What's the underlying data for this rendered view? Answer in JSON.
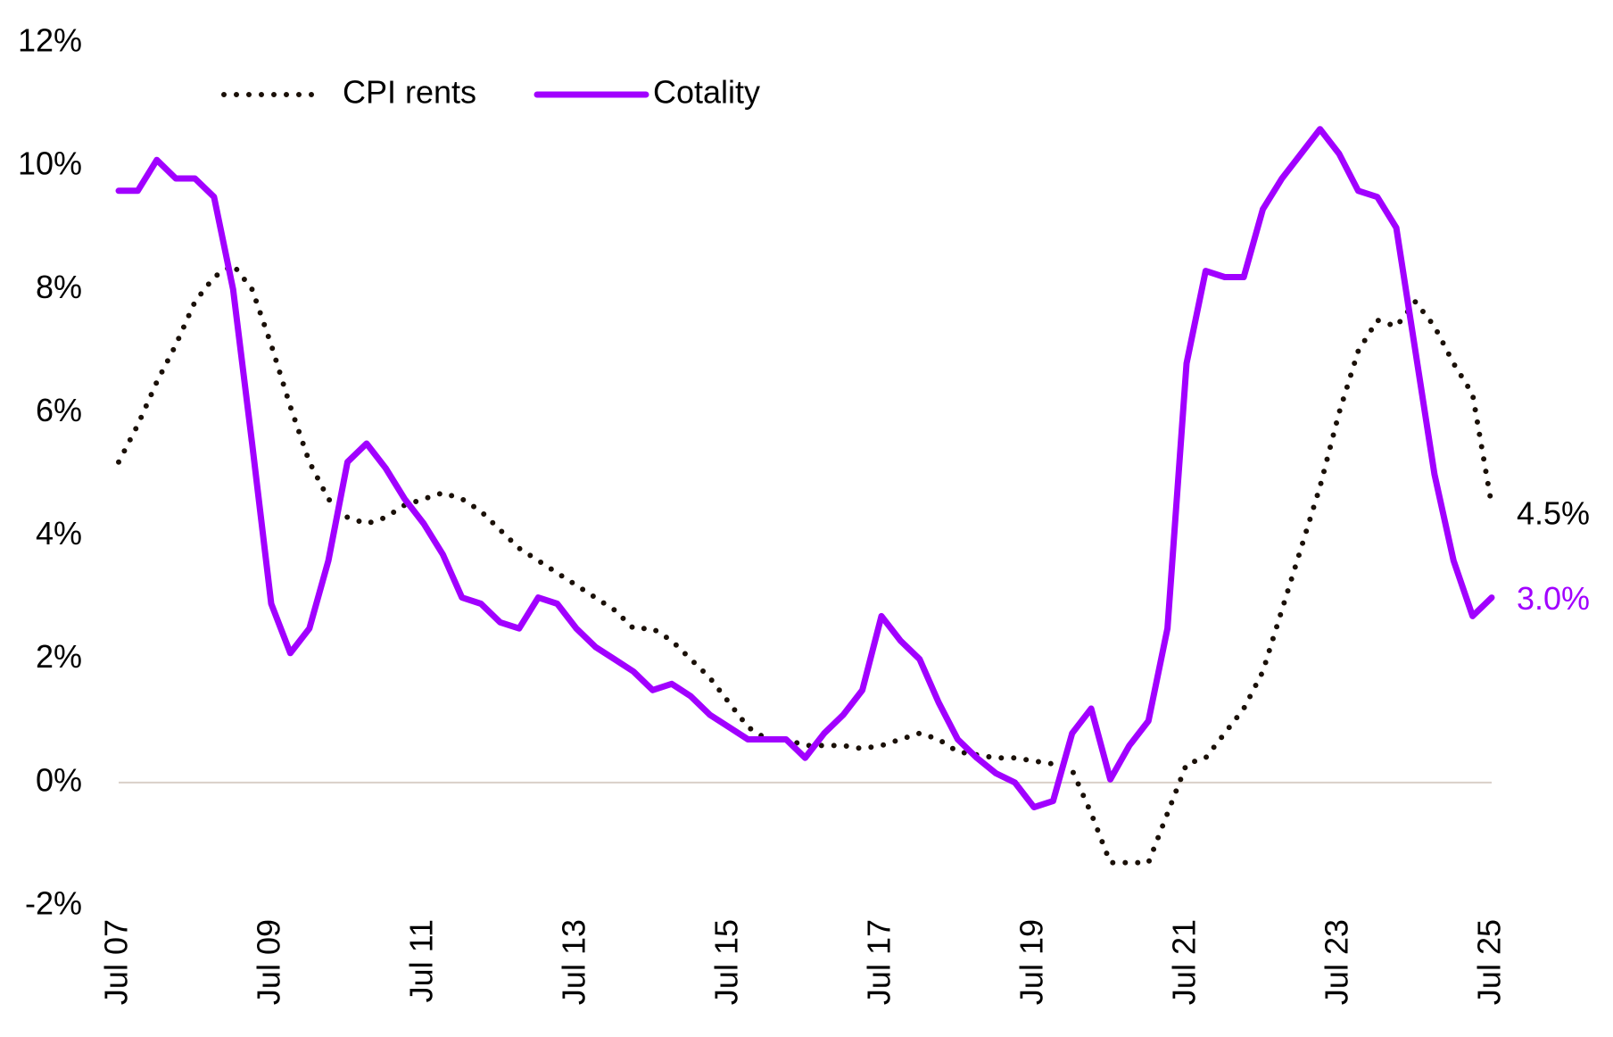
{
  "chart_data": {
    "type": "line",
    "categories": [
      "Jul 07",
      null,
      null,
      null,
      null,
      null,
      null,
      null,
      "Jul 09",
      null,
      null,
      null,
      null,
      null,
      null,
      null,
      "Jul 11",
      null,
      null,
      null,
      null,
      null,
      null,
      null,
      "Jul 13",
      null,
      null,
      null,
      null,
      null,
      null,
      null,
      "Jul 15",
      null,
      null,
      null,
      null,
      null,
      null,
      null,
      "Jul 17",
      null,
      null,
      null,
      null,
      null,
      null,
      null,
      "Jul 19",
      null,
      null,
      null,
      null,
      null,
      null,
      null,
      "Jul 21",
      null,
      null,
      null,
      null,
      null,
      null,
      null,
      "Jul 23",
      null,
      null,
      null,
      null,
      null,
      null,
      null,
      "Jul 25"
    ],
    "series": [
      {
        "name": "CPI rents",
        "color": "#1a1008",
        "style": "dotted",
        "end_label": "4.5%",
        "values": [
          5.2,
          5.8,
          6.5,
          7.1,
          7.8,
          8.2,
          8.4,
          8.0,
          7.1,
          6.1,
          5.2,
          4.6,
          4.3,
          4.2,
          4.3,
          4.5,
          4.6,
          4.7,
          4.6,
          4.4,
          4.1,
          3.8,
          3.6,
          3.4,
          3.2,
          3.0,
          2.8,
          2.5,
          2.5,
          2.3,
          2.0,
          1.7,
          1.3,
          0.9,
          0.7,
          0.7,
          0.6,
          0.6,
          0.6,
          0.55,
          0.6,
          0.7,
          0.8,
          0.7,
          0.5,
          0.45,
          0.4,
          0.4,
          0.35,
          0.3,
          0.2,
          -0.5,
          -1.3,
          -1.3,
          -1.3,
          -0.5,
          0.3,
          0.4,
          0.8,
          1.2,
          1.8,
          2.8,
          3.8,
          4.8,
          6.0,
          7.0,
          7.5,
          7.4,
          7.8,
          7.4,
          6.8,
          6.3,
          4.5
        ]
      },
      {
        "name": "Cotality",
        "color": "#a100ff",
        "style": "solid",
        "end_label": "3.0%",
        "values": [
          9.6,
          9.6,
          10.1,
          9.8,
          9.8,
          9.5,
          8.0,
          5.5,
          2.9,
          2.1,
          2.5,
          3.6,
          5.2,
          5.5,
          5.1,
          4.6,
          4.2,
          3.7,
          3.0,
          2.9,
          2.6,
          2.5,
          3.0,
          2.9,
          2.5,
          2.2,
          2.0,
          1.8,
          1.5,
          1.6,
          1.4,
          1.1,
          0.9,
          0.7,
          0.7,
          0.7,
          0.4,
          0.8,
          1.1,
          1.5,
          2.7,
          2.3,
          2.0,
          1.3,
          0.7,
          0.4,
          0.15,
          0.0,
          -0.4,
          -0.3,
          0.8,
          1.2,
          0.05,
          0.6,
          1.0,
          2.5,
          6.8,
          8.3,
          8.2,
          8.2,
          9.3,
          9.8,
          10.2,
          10.6,
          10.2,
          9.6,
          9.5,
          9.0,
          7.0,
          5.0,
          3.6,
          2.7,
          3.0
        ]
      }
    ],
    "ylim": [
      -2,
      12
    ],
    "yticks": [
      {
        "value": -2,
        "label": "-2%"
      },
      {
        "value": 0,
        "label": "0%"
      },
      {
        "value": 2,
        "label": "2%"
      },
      {
        "value": 4,
        "label": "4%"
      },
      {
        "value": 6,
        "label": "6%"
      },
      {
        "value": 8,
        "label": "8%"
      },
      {
        "value": 10,
        "label": "10%"
      },
      {
        "value": 12,
        "label": "12%"
      }
    ],
    "zero_line": true,
    "grid": false,
    "legend": "top-left"
  }
}
